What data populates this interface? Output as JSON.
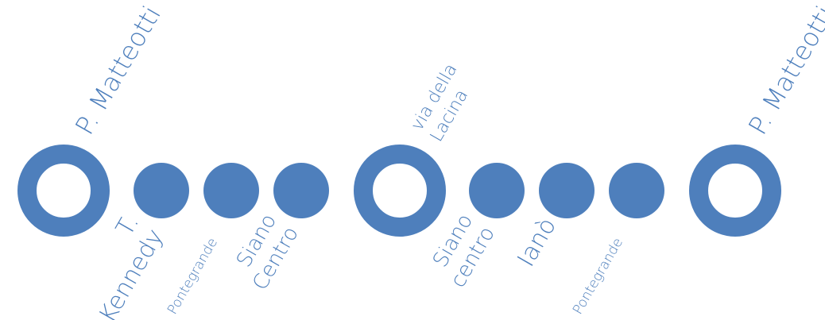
{
  "colors": {
    "line": "#4e7fbc",
    "background": "#ffffff"
  },
  "stops": [
    {
      "kind": "terminal",
      "label_lines": [
        "P. Matteotti"
      ]
    },
    {
      "kind": "stop",
      "label_lines": [
        "T.",
        "Kennedy"
      ]
    },
    {
      "kind": "stop",
      "label_lines": [
        "Pontegrande"
      ]
    },
    {
      "kind": "stop",
      "label_lines": [
        "Siano",
        "Centro"
      ]
    },
    {
      "kind": "terminal",
      "label_lines": [
        "via della",
        "Lacina"
      ]
    },
    {
      "kind": "stop",
      "label_lines": [
        "Siano",
        "centro"
      ]
    },
    {
      "kind": "stop",
      "label_lines": [
        "Ianò"
      ]
    },
    {
      "kind": "stop",
      "label_lines": [
        "Pontegrande"
      ]
    },
    {
      "kind": "terminal",
      "label_lines": [
        "P. Matteotti"
      ]
    }
  ]
}
